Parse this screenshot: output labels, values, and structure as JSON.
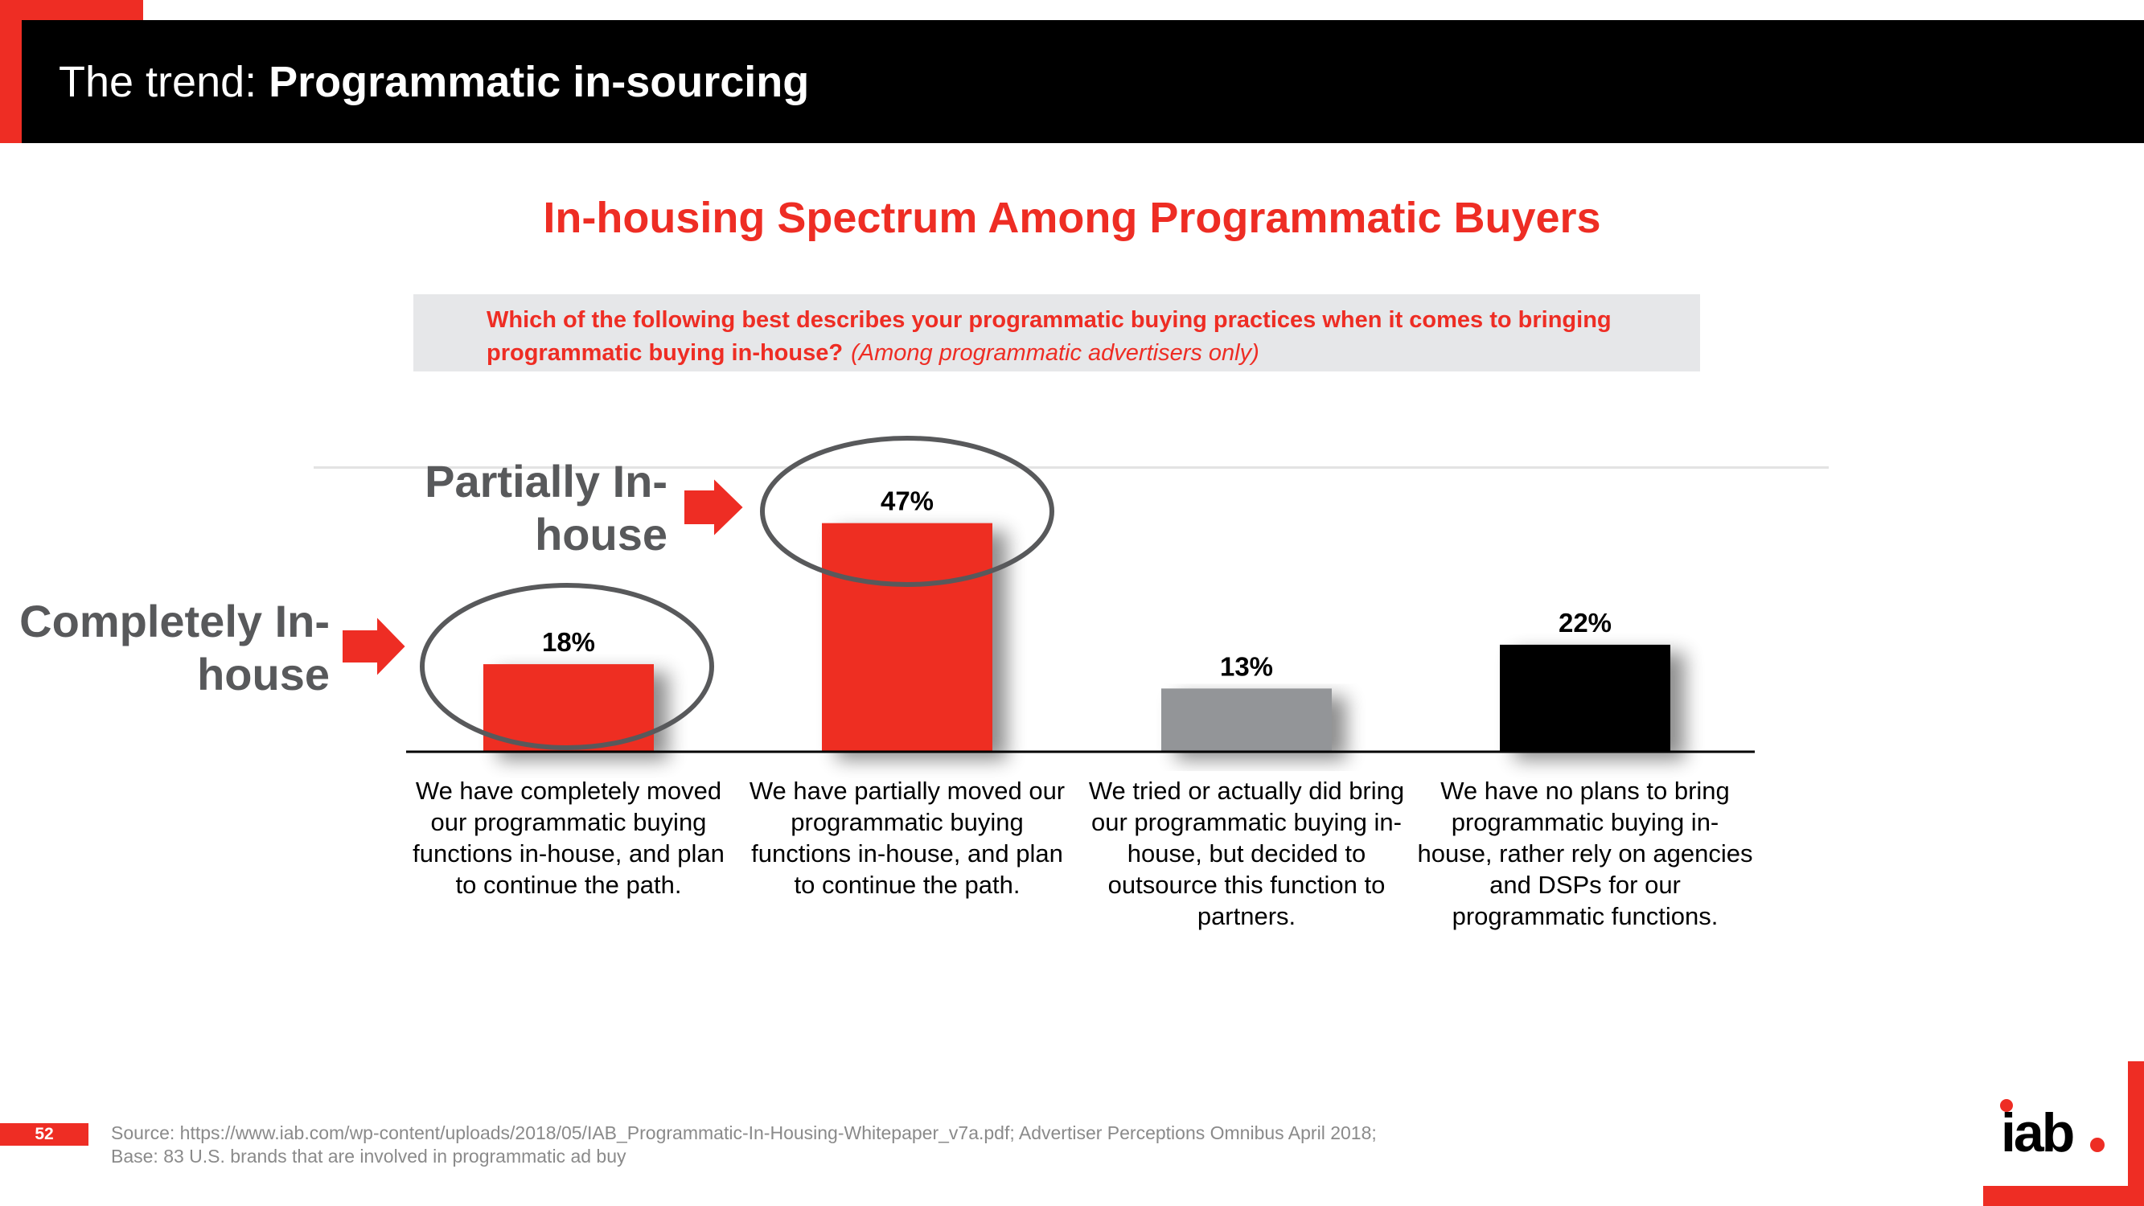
{
  "slide": {
    "title_prefix": "The trend: ",
    "title_bold": "Programmatic in-sourcing",
    "page_number": "52",
    "source_line1": "Source: https://www.iab.com/wp-content/uploads/2018/05/IAB_Programmatic-In-Housing-Whitepaper_v7a.pdf; Advertiser Perceptions Omnibus April 2018;",
    "source_line2": "Base: 83 U.S. brands that are involved in programmatic ad buy",
    "logo_text": "iab"
  },
  "question": {
    "text": "Which of the following best describes your programmatic buying practices when it comes to bringing programmatic buying in-house?",
    "note": "(Among programmatic advertisers only)"
  },
  "callouts": {
    "partially": "Partially In-house",
    "completely": "Completely In-house"
  },
  "colors": {
    "accent_red": "#ee2d24",
    "gray_bar": "#939598",
    "black_bar": "#000000",
    "ellipse": "#58595b"
  },
  "chart_data": {
    "type": "bar",
    "title": "In-housing Spectrum Among Programmatic Buyers",
    "xlabel": "",
    "ylabel": "",
    "ylim": [
      0,
      60
    ],
    "grid": false,
    "categories": [
      "We have completely moved our programmatic buying functions in-house, and plan to continue the path.",
      "We have partially moved our programmatic buying functions in-house, and plan to continue the path.",
      "We tried or actually did bring our programmatic buying in-house, but decided to outsource this function to partners.",
      "We have no plans to bring programmatic buying in-house, rather rely on agencies and DSPs for our programmatic functions."
    ],
    "values": [
      18,
      47,
      13,
      22
    ],
    "value_labels": [
      "18%",
      "47%",
      "13%",
      "22%"
    ],
    "bar_colors": [
      "#ee2d24",
      "#ee2d24",
      "#939598",
      "#000000"
    ]
  }
}
